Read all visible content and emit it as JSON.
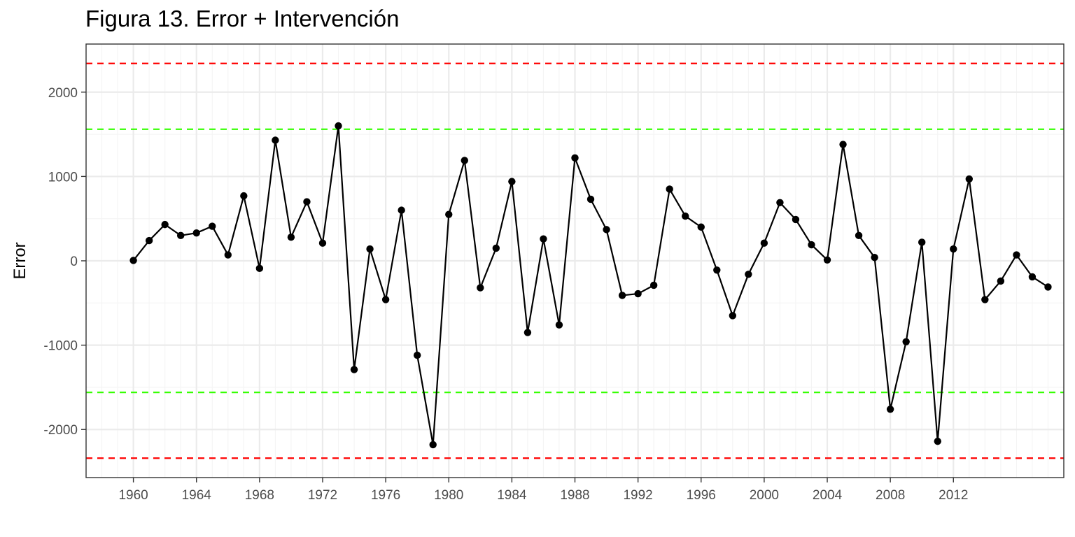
{
  "chart_data": {
    "type": "line",
    "title": "Figura 13. Error + Intervención",
    "xlabel": "",
    "ylabel": "Error",
    "xlim": [
      1957,
      2019
    ],
    "ylim": [
      -2570,
      2570
    ],
    "x_ticks": [
      1960,
      1964,
      1968,
      1972,
      1976,
      1980,
      1984,
      1988,
      1992,
      1996,
      2000,
      2004,
      2008,
      2012
    ],
    "y_ticks": [
      -2000,
      -1000,
      0,
      1000,
      2000
    ],
    "y_tick_labels": [
      "-2000",
      "-1000",
      "0",
      "1000",
      "2000"
    ],
    "grid": true,
    "series": [
      {
        "color": "#000000",
        "markers": true,
        "x": [
          1960,
          1961,
          1962,
          1963,
          1964,
          1965,
          1966,
          1967,
          1968,
          1969,
          1970,
          1971,
          1972,
          1973,
          1974,
          1975,
          1976,
          1977,
          1978,
          1979,
          1980,
          1981,
          1982,
          1983,
          1984,
          1985,
          1986,
          1987,
          1988,
          1989,
          1990,
          1991,
          1992,
          1993,
          1994,
          1995,
          1996,
          1997,
          1998,
          1999,
          2000,
          2001,
          2002,
          2003,
          2004,
          2005,
          2006,
          2007,
          2008,
          2009,
          2010,
          2011,
          2012,
          2013,
          2014,
          2015,
          2016,
          2017,
          2018
        ],
        "values": [
          5,
          240,
          430,
          300,
          330,
          410,
          70,
          770,
          -90,
          1430,
          280,
          700,
          210,
          1600,
          -1290,
          140,
          -460,
          600,
          -1120,
          -2180,
          550,
          1190,
          -320,
          150,
          940,
          -850,
          260,
          -760,
          1220,
          730,
          370,
          -410,
          -390,
          -290,
          850,
          530,
          400,
          -110,
          -650,
          -160,
          210,
          690,
          490,
          190,
          10,
          1380,
          300,
          40,
          -1760,
          -960,
          220,
          -2140,
          140,
          970,
          -460,
          -240,
          70,
          -190,
          -310
        ]
      }
    ],
    "reference_lines": [
      {
        "y": 2340,
        "color": "#ff0000",
        "style": "dashed"
      },
      {
        "y": 1560,
        "color": "#33ff00",
        "style": "dashed"
      },
      {
        "y": -1560,
        "color": "#33ff00",
        "style": "dashed"
      },
      {
        "y": -2340,
        "color": "#ff0000",
        "style": "dashed"
      }
    ],
    "colors": {
      "panel_border": "#333333",
      "major_grid": "#ebebeb",
      "minor_grid": "#f4f4f4",
      "tick_text": "#4d4d4d"
    }
  }
}
